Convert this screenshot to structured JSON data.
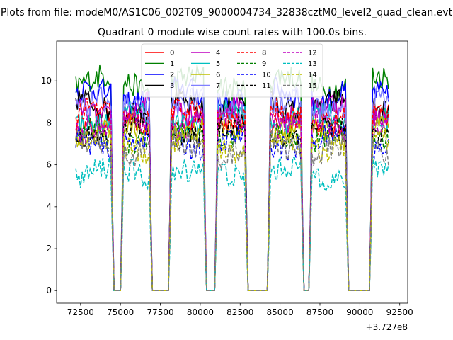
{
  "chart_data": {
    "type": "line",
    "suptitle": "Plots from file: modeM0/AS1C06_002T09_9000004734_32838cztM0_level2_quad_clean.evt",
    "title": "Quadrant 0 module wise count rates with 100.0s bins.",
    "xlabel": "",
    "ylabel": "",
    "x_offset_label": "+3.727e8",
    "x_range": [
      72200,
      91800
    ],
    "xlim": [
      71000,
      93000
    ],
    "ylim": [
      -0.6,
      11.9
    ],
    "x_ticks": [
      72500,
      75000,
      77500,
      80000,
      82500,
      85000,
      87500,
      90000,
      92500
    ],
    "y_ticks": [
      0,
      2,
      4,
      6,
      8,
      10
    ],
    "bin_seconds": 100,
    "gaps": [
      [
        74500,
        75100
      ],
      [
        76900,
        78100
      ],
      [
        80300,
        81000
      ],
      [
        82900,
        84300
      ],
      [
        86400,
        86900
      ],
      [
        89200,
        90700
      ]
    ],
    "series": [
      {
        "name": "0",
        "color": "#ff0000",
        "dash": "solid",
        "mean": 8.0
      },
      {
        "name": "1",
        "color": "#008000",
        "dash": "solid",
        "mean": 9.9
      },
      {
        "name": "2",
        "color": "#0000ff",
        "dash": "solid",
        "mean": 9.3
      },
      {
        "name": "3",
        "color": "#000000",
        "dash": "solid",
        "mean": 8.8
      },
      {
        "name": "4",
        "color": "#bf00bf",
        "dash": "solid",
        "mean": 8.6
      },
      {
        "name": "5",
        "color": "#00bfbf",
        "dash": "solid",
        "mean": 8.2
      },
      {
        "name": "6",
        "color": "#bfbf00",
        "dash": "solid",
        "mean": 7.6
      },
      {
        "name": "7",
        "color": "#8080ff",
        "dash": "solid",
        "mean": 8.8
      },
      {
        "name": "8",
        "color": "#ff0000",
        "dash": "dashed",
        "mean": 8.3
      },
      {
        "name": "9",
        "color": "#008000",
        "dash": "dashed",
        "mean": 7.4
      },
      {
        "name": "10",
        "color": "#0000ff",
        "dash": "dashed",
        "mean": 7.1
      },
      {
        "name": "11",
        "color": "#000000",
        "dash": "dashed",
        "mean": 7.6
      },
      {
        "name": "12",
        "color": "#bf00bf",
        "dash": "dashed",
        "mean": 7.9
      },
      {
        "name": "13",
        "color": "#00bfbf",
        "dash": "dashed",
        "mean": 5.6
      },
      {
        "name": "14",
        "color": "#bfbf00",
        "dash": "dashed",
        "mean": 7.0
      },
      {
        "name": "15",
        "color": "#808080",
        "dash": "dashed",
        "mean": 6.8
      }
    ]
  }
}
